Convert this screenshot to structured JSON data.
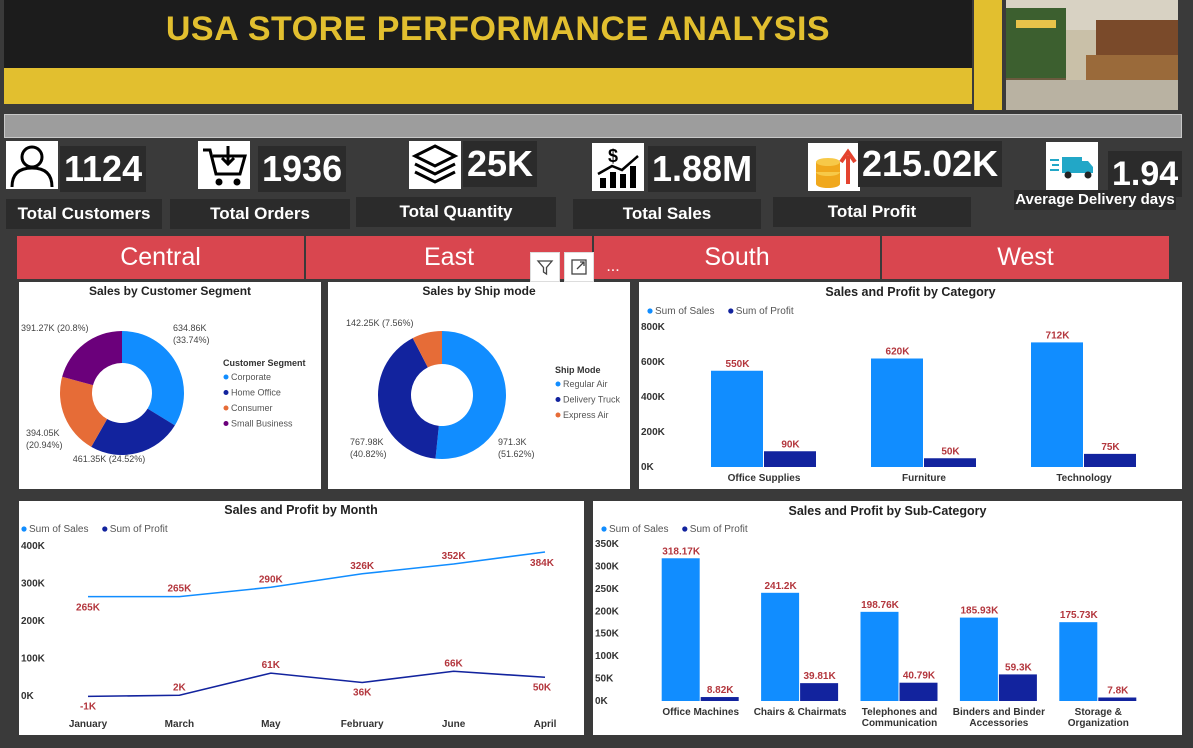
{
  "title": "USA STORE PERFORMANCE ANALYSIS",
  "kpis": [
    {
      "value": "1124",
      "label": "Total Customers",
      "icon": "person-icon"
    },
    {
      "value": "1936",
      "label": "Total Orders",
      "icon": "cart-icon"
    },
    {
      "value": "25K",
      "label": "Total Quantity",
      "icon": "layers-icon"
    },
    {
      "value": "1.88M",
      "label": "Total Sales",
      "icon": "sales-growth-icon"
    },
    {
      "value": "215.02K",
      "label": "Total Profit",
      "icon": "coins-icon"
    },
    {
      "value": "1.94",
      "label": "Average Delivery days",
      "icon": "delivery-truck-icon"
    }
  ],
  "regions": [
    "Central",
    "East",
    "South",
    "West"
  ],
  "toolbar": {
    "filter": "filter-icon",
    "focus": "focus-mode-icon",
    "more": "..."
  },
  "colors": {
    "sales": "#118dff",
    "profit": "#12239e",
    "accent_yellow": "#e2bf2f",
    "region_red": "#d9464f",
    "orange": "#e66c37",
    "purple": "#6b007b"
  },
  "segment_chart": {
    "title": "Sales by Customer Segment",
    "legend_title": "Customer Segment",
    "slices": [
      {
        "name": "Corporate",
        "label": "634.86K",
        "pct": "(33.74%)",
        "value": 634.86
      },
      {
        "name": "Home Office",
        "label": "461.35K (24.52%)",
        "pct": "",
        "value": 461.35
      },
      {
        "name": "Consumer",
        "label": "394.05K",
        "pct": "(20.94%)",
        "value": 394.05
      },
      {
        "name": "Small Business",
        "label": "391.27K (20.8%)",
        "pct": "",
        "value": 391.27
      }
    ]
  },
  "ship_chart": {
    "title": "Sales by Ship mode",
    "legend_title": "Ship Mode",
    "slices": [
      {
        "name": "Regular Air",
        "label": "971.3K",
        "pct": "(51.62%)",
        "value": 971.3
      },
      {
        "name": "Delivery Truck",
        "label": "767.98K",
        "pct": "(40.82%)",
        "value": 767.98
      },
      {
        "name": "Express Air",
        "label": "142.25K (7.56%)",
        "pct": "",
        "value": 142.25
      }
    ]
  },
  "chart_data": [
    {
      "type": "bar",
      "title": "Sales and Profit by Category",
      "categories": [
        "Office Supplies",
        "Furniture",
        "Technology"
      ],
      "series": [
        {
          "name": "Sum of Sales",
          "values": [
            550,
            620,
            712
          ],
          "labels": [
            "550K",
            "620K",
            "712K"
          ]
        },
        {
          "name": "Sum of Profit",
          "values": [
            90,
            50,
            75
          ],
          "labels": [
            "90K",
            "50K",
            "75K"
          ]
        }
      ],
      "yticks": [
        "800K",
        "600K",
        "400K",
        "200K",
        "0K"
      ],
      "ylim": [
        0,
        800
      ]
    },
    {
      "type": "line",
      "title": "Sales and Profit by Month",
      "categories": [
        "January",
        "March",
        "May",
        "February",
        "June",
        "April"
      ],
      "series": [
        {
          "name": "Sum of Sales",
          "values": [
            265,
            265,
            290,
            326,
            352,
            384
          ],
          "labels": [
            "265K",
            "265K",
            "290K",
            "326K",
            "352K",
            "384K"
          ]
        },
        {
          "name": "Sum of Profit",
          "values": [
            -1,
            2,
            61,
            36,
            66,
            50
          ],
          "labels": [
            "-1K",
            "2K",
            "61K",
            "36K",
            "66K",
            "50K"
          ]
        }
      ],
      "yticks": [
        "400K",
        "300K",
        "200K",
        "100K",
        "0K"
      ],
      "ylim": [
        0,
        400
      ]
    },
    {
      "type": "bar",
      "title": "Sales and Profit by Sub-Category",
      "categories": [
        "Office Machines",
        "Chairs & Chairmats",
        "Telephones and Communication",
        "Binders and Binder Accessories",
        "Storage & Organization"
      ],
      "category_lines": [
        [
          "Office Machines"
        ],
        [
          "Chairs & Chairmats"
        ],
        [
          "Telephones and",
          "Communication"
        ],
        [
          "Binders and Binder",
          "Accessories"
        ],
        [
          "Storage &",
          "Organization"
        ]
      ],
      "series": [
        {
          "name": "Sum of Sales",
          "values": [
            318.17,
            241.2,
            198.76,
            185.93,
            175.73
          ],
          "labels": [
            "318.17K",
            "241.2K",
            "198.76K",
            "185.93K",
            "175.73K"
          ]
        },
        {
          "name": "Sum of Profit",
          "values": [
            8.82,
            39.81,
            40.79,
            59.3,
            7.8
          ],
          "labels": [
            "8.82K",
            "39.81K",
            "40.79K",
            "59.3K",
            "7.8K"
          ]
        }
      ],
      "yticks": [
        "350K",
        "300K",
        "250K",
        "200K",
        "150K",
        "100K",
        "50K",
        "0K"
      ],
      "ylim": [
        0,
        350
      ]
    }
  ]
}
